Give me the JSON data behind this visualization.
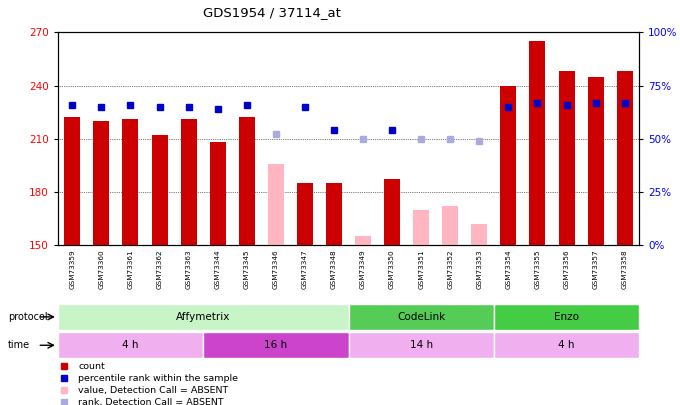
{
  "title": "GDS1954 / 37114_at",
  "samples": [
    "GSM73359",
    "GSM73360",
    "GSM73361",
    "GSM73362",
    "GSM73363",
    "GSM73344",
    "GSM73345",
    "GSM73346",
    "GSM73347",
    "GSM73348",
    "GSM73349",
    "GSM73350",
    "GSM73351",
    "GSM73352",
    "GSM73353",
    "GSM73354",
    "GSM73355",
    "GSM73356",
    "GSM73357",
    "GSM73358"
  ],
  "count_values": [
    222,
    220,
    221,
    212,
    221,
    208,
    222,
    null,
    185,
    185,
    null,
    187,
    null,
    null,
    null,
    240,
    265,
    248,
    245,
    248
  ],
  "count_absent": [
    null,
    null,
    null,
    null,
    null,
    null,
    null,
    196,
    null,
    null,
    155,
    null,
    170,
    172,
    162,
    null,
    null,
    null,
    null,
    null
  ],
  "rank_pct": [
    66,
    65,
    66,
    65,
    65,
    64,
    66,
    null,
    65,
    54,
    null,
    54,
    null,
    null,
    null,
    65,
    67,
    66,
    67,
    67
  ],
  "rank_absent_pct": [
    null,
    null,
    null,
    null,
    null,
    null,
    null,
    52,
    null,
    null,
    50,
    null,
    50,
    50,
    49,
    null,
    null,
    null,
    null,
    null
  ],
  "ylim_left": [
    150,
    270
  ],
  "ylim_right": [
    0,
    100
  ],
  "yticks_left": [
    150,
    180,
    210,
    240,
    270
  ],
  "yticks_right": [
    0,
    25,
    50,
    75,
    100
  ],
  "ytick_labels_right": [
    "0%",
    "25%",
    "50%",
    "75%",
    "100%"
  ],
  "protocols": [
    {
      "label": "Affymetrix",
      "start": 0,
      "end": 9,
      "color": "#c8f5c8"
    },
    {
      "label": "CodeLink",
      "start": 10,
      "end": 14,
      "color": "#55cc55"
    },
    {
      "label": "Enzo",
      "start": 15,
      "end": 19,
      "color": "#44bb44"
    }
  ],
  "times": [
    {
      "label": "4 h",
      "start": 0,
      "end": 4,
      "color": "#f8c8f8"
    },
    {
      "label": "16 h",
      "start": 5,
      "end": 9,
      "color": "#cc55cc"
    },
    {
      "label": "14 h",
      "start": 10,
      "end": 14,
      "color": "#f8c8f8"
    },
    {
      "label": "4 h",
      "start": 15,
      "end": 19,
      "color": "#f8c8f8"
    }
  ],
  "bar_width": 0.55,
  "count_color": "#cc0000",
  "count_absent_color": "#ffb6c1",
  "rank_color": "#0000cc",
  "rank_absent_color": "#aaaadd",
  "bg_color": "#ffffff",
  "plot_bg_color": "#ffffff",
  "label_bg_color": "#dddddd",
  "grid_color": "#000000"
}
